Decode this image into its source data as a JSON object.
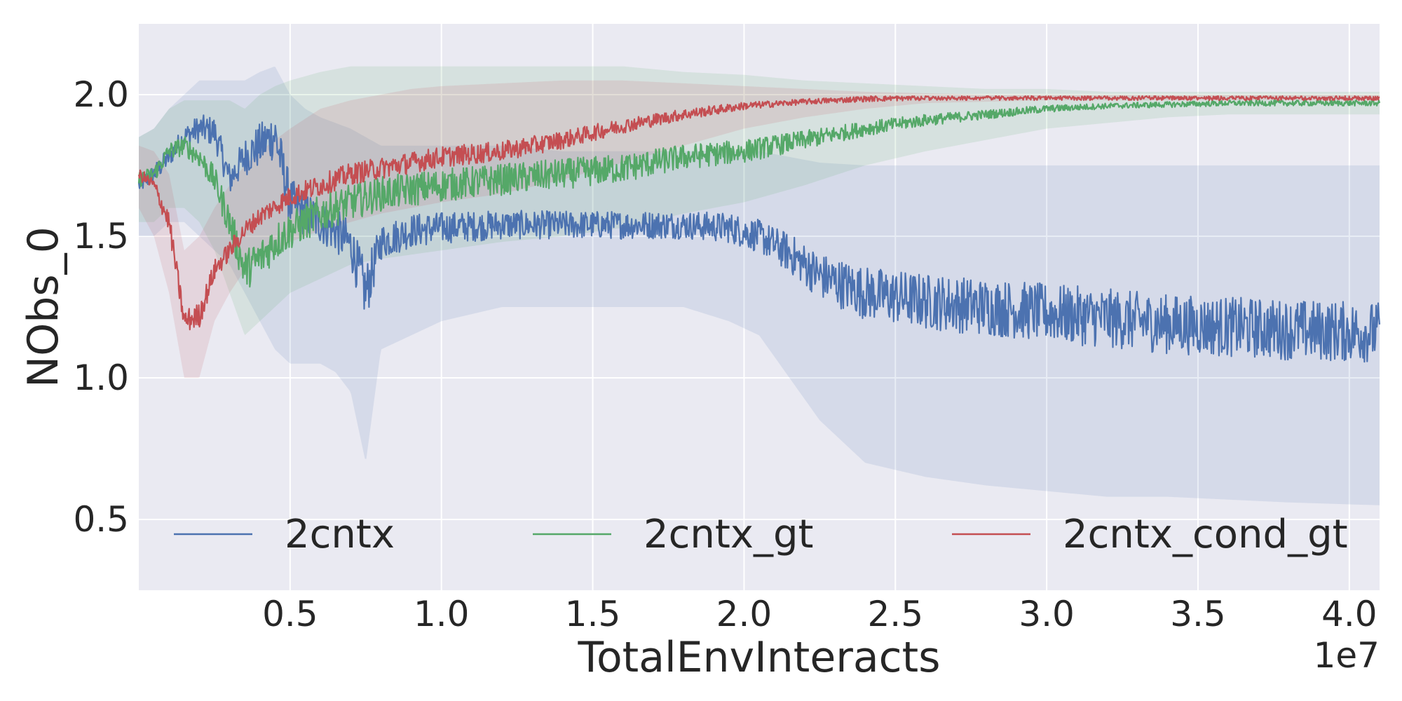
{
  "chart_data": {
    "type": "line",
    "xlabel": "TotalEnvInteracts",
    "ylabel": "NObs_0",
    "x_offset_label": "1e7",
    "xlim": [
      0.0,
      4.1
    ],
    "ylim": [
      0.25,
      2.25
    ],
    "x_ticks": [
      0.5,
      1.0,
      1.5,
      2.0,
      2.5,
      3.0,
      3.5,
      4.0
    ],
    "x_tick_labels": [
      "0.5",
      "1.0",
      "1.5",
      "2.0",
      "2.5",
      "3.0",
      "3.5",
      "4.0"
    ],
    "y_ticks": [
      0.5,
      1.0,
      1.5,
      2.0
    ],
    "y_tick_labels": [
      "0.5",
      "1.0",
      "1.5",
      "2.0"
    ],
    "grid": true,
    "legend_position": "lower center",
    "series": [
      {
        "name": "2cntx",
        "color": "#4c72b0",
        "x": [
          0.0,
          0.05,
          0.1,
          0.15,
          0.2,
          0.25,
          0.3,
          0.35,
          0.4,
          0.45,
          0.5,
          0.55,
          0.6,
          0.65,
          0.7,
          0.75,
          0.8,
          0.9,
          1.0,
          1.2,
          1.4,
          1.6,
          1.8,
          1.95,
          2.05,
          2.15,
          2.25,
          2.4,
          2.6,
          2.8,
          3.0,
          3.2,
          3.4,
          3.6,
          3.8,
          4.1
        ],
        "y": [
          1.68,
          1.72,
          1.78,
          1.85,
          1.88,
          1.87,
          1.7,
          1.78,
          1.82,
          1.86,
          1.62,
          1.58,
          1.55,
          1.52,
          1.47,
          1.3,
          1.48,
          1.52,
          1.53,
          1.54,
          1.54,
          1.54,
          1.54,
          1.53,
          1.5,
          1.44,
          1.36,
          1.3,
          1.27,
          1.25,
          1.23,
          1.21,
          1.19,
          1.18,
          1.17,
          1.16
        ],
        "y_low": [
          1.5,
          1.5,
          1.55,
          1.55,
          1.5,
          1.45,
          1.4,
          1.3,
          1.2,
          1.1,
          1.05,
          1.05,
          1.05,
          1.02,
          0.95,
          0.7,
          1.1,
          1.15,
          1.2,
          1.25,
          1.25,
          1.25,
          1.25,
          1.2,
          1.15,
          1.0,
          0.85,
          0.7,
          0.65,
          0.62,
          0.6,
          0.58,
          0.58,
          0.57,
          0.56,
          0.55
        ],
        "y_high": [
          1.85,
          1.88,
          1.95,
          2.0,
          2.05,
          2.05,
          2.05,
          2.05,
          2.08,
          2.1,
          2.0,
          1.95,
          1.92,
          1.9,
          1.88,
          1.85,
          1.82,
          1.82,
          1.82,
          1.82,
          1.8,
          1.8,
          1.8,
          1.8,
          1.8,
          1.78,
          1.76,
          1.75,
          1.75,
          1.75,
          1.75,
          1.75,
          1.75,
          1.75,
          1.75,
          1.75
        ]
      },
      {
        "name": "2cntx_gt",
        "color": "#55a868",
        "x": [
          0.0,
          0.05,
          0.1,
          0.15,
          0.2,
          0.25,
          0.3,
          0.35,
          0.4,
          0.45,
          0.5,
          0.6,
          0.7,
          0.8,
          1.0,
          1.2,
          1.4,
          1.6,
          1.8,
          2.0,
          2.2,
          2.4,
          2.6,
          2.8,
          3.0,
          3.2,
          3.4,
          3.6,
          3.8,
          4.1
        ],
        "y": [
          1.7,
          1.72,
          1.8,
          1.82,
          1.78,
          1.7,
          1.55,
          1.38,
          1.42,
          1.48,
          1.52,
          1.58,
          1.62,
          1.65,
          1.68,
          1.7,
          1.72,
          1.74,
          1.78,
          1.8,
          1.84,
          1.88,
          1.91,
          1.93,
          1.95,
          1.96,
          1.965,
          1.97,
          1.97,
          1.97
        ],
        "y_low": [
          1.55,
          1.55,
          1.6,
          1.6,
          1.55,
          1.45,
          1.3,
          1.15,
          1.2,
          1.25,
          1.3,
          1.35,
          1.4,
          1.42,
          1.45,
          1.48,
          1.5,
          1.53,
          1.58,
          1.62,
          1.68,
          1.75,
          1.8,
          1.84,
          1.88,
          1.9,
          1.92,
          1.93,
          1.93,
          1.93
        ],
        "y_high": [
          1.85,
          1.88,
          1.95,
          1.98,
          1.98,
          1.98,
          1.98,
          1.95,
          2.0,
          2.03,
          2.05,
          2.08,
          2.1,
          2.1,
          2.1,
          2.1,
          2.1,
          2.1,
          2.08,
          2.07,
          2.05,
          2.04,
          2.03,
          2.02,
          2.02,
          2.01,
          2.01,
          2.01,
          2.01,
          2.01
        ]
      },
      {
        "name": "2cntx_cond_gt",
        "color": "#c44e52",
        "x": [
          0.0,
          0.05,
          0.1,
          0.15,
          0.2,
          0.25,
          0.3,
          0.35,
          0.4,
          0.5,
          0.6,
          0.7,
          0.8,
          0.9,
          1.0,
          1.2,
          1.4,
          1.6,
          1.8,
          2.0,
          2.2,
          2.4,
          2.6,
          2.8,
          3.0,
          3.5,
          4.1
        ],
        "y": [
          1.72,
          1.68,
          1.55,
          1.2,
          1.22,
          1.38,
          1.45,
          1.52,
          1.57,
          1.64,
          1.68,
          1.72,
          1.74,
          1.76,
          1.78,
          1.8,
          1.84,
          1.89,
          1.93,
          1.96,
          1.975,
          1.985,
          1.99,
          1.99,
          1.99,
          1.99,
          1.99
        ],
        "y_low": [
          1.6,
          1.5,
          1.3,
          1.0,
          1.0,
          1.2,
          1.3,
          1.38,
          1.42,
          1.48,
          1.52,
          1.55,
          1.58,
          1.6,
          1.62,
          1.65,
          1.7,
          1.76,
          1.82,
          1.88,
          1.92,
          1.95,
          1.97,
          1.975,
          1.98,
          1.98,
          1.98
        ],
        "y_high": [
          1.82,
          1.8,
          1.72,
          1.45,
          1.5,
          1.6,
          1.68,
          1.75,
          1.8,
          1.88,
          1.95,
          1.98,
          2.0,
          2.02,
          2.03,
          2.04,
          2.05,
          2.05,
          2.04,
          2.03,
          2.02,
          2.01,
          2.005,
          2.0,
          2.0,
          2.0,
          2.0
        ]
      }
    ]
  }
}
